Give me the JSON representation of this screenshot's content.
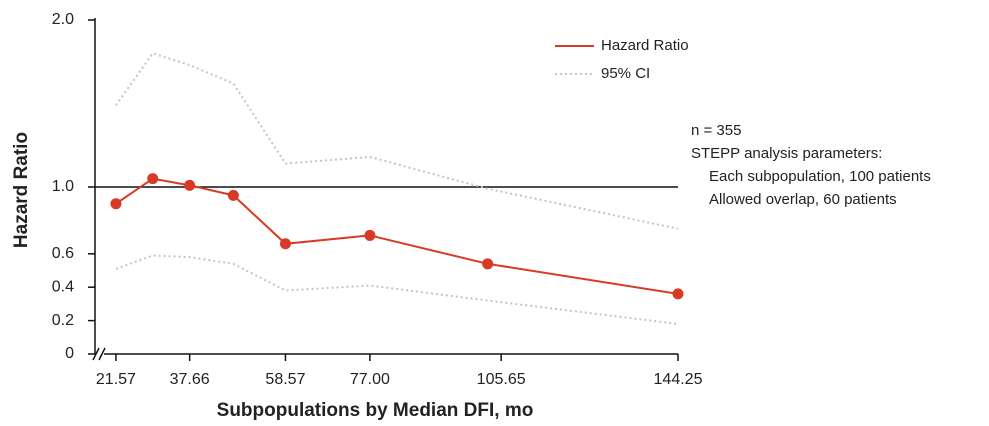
{
  "chart_data": {
    "type": "line",
    "x_label": "Subpopulations by Median DFI, mo",
    "y_label": "Hazard Ratio",
    "x": [
      21.57,
      29.6,
      37.66,
      47.2,
      58.57,
      77.0,
      102.7,
      144.25
    ],
    "series": [
      {
        "name": "Hazard Ratio",
        "color": "#d93a26",
        "values": [
          0.9,
          1.05,
          1.01,
          0.95,
          0.66,
          0.71,
          0.54,
          0.36
        ]
      }
    ],
    "ci": {
      "name": "95% CI",
      "color": "#c4c4c4",
      "upper": [
        1.49,
        1.8,
        1.73,
        1.62,
        1.14,
        1.18,
        0.99,
        0.75
      ],
      "lower": [
        0.51,
        0.59,
        0.58,
        0.54,
        0.38,
        0.41,
        0.32,
        0.18
      ]
    },
    "reference_line": 1,
    "xlim": [
      17,
      144.25
    ],
    "xticks": [
      21.57,
      37.66,
      58.57,
      {
        "value": 77,
        "label": "77.00"
      },
      105.65,
      144.25
    ],
    "ylim": [
      0,
      2
    ],
    "yticks": [
      0,
      {
        "value": 0.2,
        "label": "0.2"
      },
      {
        "value": 0.4,
        "label": "0.4"
      },
      {
        "value": 0.6,
        "label": "0.6"
      },
      {
        "value": 1,
        "label": "1.0"
      },
      {
        "value": 2,
        "label": "2.0"
      }
    ],
    "annotations": [
      "n = 355",
      "STEPP analysis parameters:",
      "Each subpopulation, 100 patients",
      "Allowed overlap, 60 patients"
    ]
  }
}
